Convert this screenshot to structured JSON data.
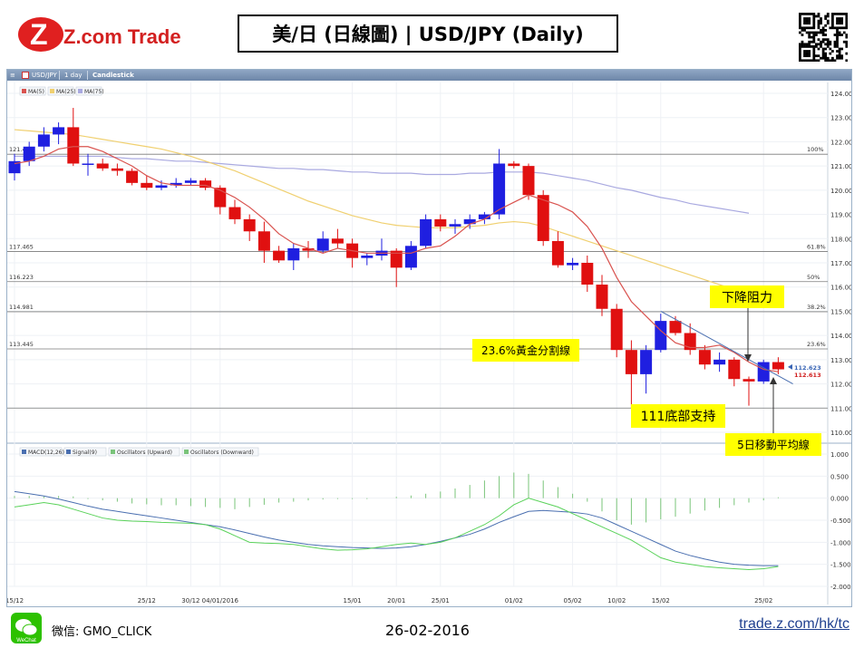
{
  "header": {
    "logo_text": "Z.com Trade",
    "title": "美/日 (日線圖) | USD/JPY  (Daily)"
  },
  "toolbar": {
    "symbol": "USD/JPY",
    "period": "1 day",
    "style": "Candlestick"
  },
  "legends": {
    "price": [
      "MA(5)",
      "MA(25)",
      "MA(75)"
    ],
    "oscillator": [
      "MACD(12,26)",
      "Signal(9)",
      "Oscillators (Upward)",
      "Oscillators (Downward)"
    ]
  },
  "annotations": {
    "resistance": "下降阻力",
    "fib": "23.6%黃金分割線",
    "support": "111底部支持",
    "ma": "5日移動平均線"
  },
  "footer": {
    "wechat_label": "WeChat",
    "wechat_id": "微信: GMO_CLICK",
    "date": "26-02-2016",
    "link": "trade.z.com/hk/tc"
  },
  "colors": {
    "up": "#1f1fe0",
    "down": "#e01010",
    "ma5": "#d9534f",
    "ma25": "#f0d070",
    "ma75": "#a9a9e0",
    "macd": "#4a6fb0",
    "signal": "#5ad25a",
    "hist": "#7ac47a",
    "callout": "#ffff00"
  },
  "chart_data": [
    {
      "type": "candlestick",
      "ylim": [
        110.0,
        124.0
      ],
      "yticks": [
        "124.000",
        "123.000",
        "122.000",
        "121.000",
        "120.000",
        "119.000",
        "118.000",
        "117.000",
        "116.000",
        "115.000",
        "114.000",
        "113.000",
        "112.000",
        "111.000",
        "110.000"
      ],
      "x_tick_labels": [
        "15/12",
        "25/12",
        "30/12",
        "04/01/2016",
        "15/01",
        "20/01",
        "25/01",
        "01/02",
        "05/02",
        "10/02",
        "15/02",
        "25/02"
      ],
      "x_tick_index": [
        0,
        9,
        12,
        14,
        23,
        26,
        29,
        34,
        38,
        41,
        44,
        51
      ],
      "fib_levels": [
        {
          "label": "100%",
          "value": 121.485
        },
        {
          "label": "61.8%",
          "value": 117.465
        },
        {
          "label": "50%",
          "value": 116.223
        },
        {
          "label": "38.2%",
          "value": 114.981
        },
        {
          "label": "23.6%",
          "value": 113.445
        }
      ],
      "support": 111.0,
      "last_prices": {
        "ask": 112.623,
        "bid": 112.613
      },
      "candles": [
        {
          "o": 120.7,
          "h": 121.5,
          "l": 120.4,
          "c": 121.2
        },
        {
          "o": 121.2,
          "h": 122.0,
          "l": 121.0,
          "c": 121.8
        },
        {
          "o": 121.8,
          "h": 122.6,
          "l": 121.6,
          "c": 122.3
        },
        {
          "o": 122.3,
          "h": 122.8,
          "l": 121.9,
          "c": 122.6
        },
        {
          "o": 122.6,
          "h": 123.4,
          "l": 121.0,
          "c": 121.1
        },
        {
          "o": 121.1,
          "h": 121.5,
          "l": 120.6,
          "c": 121.1
        },
        {
          "o": 121.1,
          "h": 121.3,
          "l": 120.8,
          "c": 120.9
        },
        {
          "o": 120.9,
          "h": 121.1,
          "l": 120.6,
          "c": 120.8
        },
        {
          "o": 120.8,
          "h": 120.9,
          "l": 120.2,
          "c": 120.3
        },
        {
          "o": 120.3,
          "h": 120.6,
          "l": 120.0,
          "c": 120.1
        },
        {
          "o": 120.1,
          "h": 120.4,
          "l": 120.0,
          "c": 120.2
        },
        {
          "o": 120.2,
          "h": 120.5,
          "l": 120.1,
          "c": 120.3
        },
        {
          "o": 120.3,
          "h": 120.5,
          "l": 120.2,
          "c": 120.4
        },
        {
          "o": 120.4,
          "h": 120.5,
          "l": 120.0,
          "c": 120.1
        },
        {
          "o": 120.1,
          "h": 120.2,
          "l": 119.0,
          "c": 119.3
        },
        {
          "o": 119.3,
          "h": 119.6,
          "l": 118.6,
          "c": 118.8
        },
        {
          "o": 118.8,
          "h": 119.0,
          "l": 117.9,
          "c": 118.3
        },
        {
          "o": 118.3,
          "h": 118.7,
          "l": 117.0,
          "c": 117.5
        },
        {
          "o": 117.5,
          "h": 117.7,
          "l": 117.0,
          "c": 117.1
        },
        {
          "o": 117.1,
          "h": 117.8,
          "l": 116.7,
          "c": 117.6
        },
        {
          "o": 117.6,
          "h": 117.9,
          "l": 117.2,
          "c": 117.5
        },
        {
          "o": 117.5,
          "h": 118.3,
          "l": 117.4,
          "c": 118.0
        },
        {
          "o": 118.0,
          "h": 118.4,
          "l": 117.6,
          "c": 117.8
        },
        {
          "o": 117.8,
          "h": 118.0,
          "l": 116.8,
          "c": 117.2
        },
        {
          "o": 117.2,
          "h": 117.4,
          "l": 116.9,
          "c": 117.3
        },
        {
          "o": 117.3,
          "h": 118.0,
          "l": 117.1,
          "c": 117.5
        },
        {
          "o": 117.5,
          "h": 117.6,
          "l": 116.0,
          "c": 116.8
        },
        {
          "o": 116.8,
          "h": 117.9,
          "l": 116.7,
          "c": 117.7
        },
        {
          "o": 117.7,
          "h": 119.0,
          "l": 117.6,
          "c": 118.8
        },
        {
          "o": 118.8,
          "h": 119.0,
          "l": 118.3,
          "c": 118.5
        },
        {
          "o": 118.5,
          "h": 118.8,
          "l": 118.2,
          "c": 118.6
        },
        {
          "o": 118.6,
          "h": 119.0,
          "l": 118.4,
          "c": 118.8
        },
        {
          "o": 118.8,
          "h": 119.1,
          "l": 118.6,
          "c": 119.0
        },
        {
          "o": 119.0,
          "h": 121.7,
          "l": 118.8,
          "c": 121.1
        },
        {
          "o": 121.1,
          "h": 121.2,
          "l": 120.9,
          "c": 121.0
        },
        {
          "o": 121.0,
          "h": 121.1,
          "l": 119.6,
          "c": 119.8
        },
        {
          "o": 119.8,
          "h": 120.0,
          "l": 117.7,
          "c": 117.9
        },
        {
          "o": 117.9,
          "h": 118.3,
          "l": 116.8,
          "c": 116.9
        },
        {
          "o": 116.9,
          "h": 117.2,
          "l": 116.7,
          "c": 117.0
        },
        {
          "o": 117.0,
          "h": 117.3,
          "l": 115.8,
          "c": 116.1
        },
        {
          "o": 116.1,
          "h": 116.5,
          "l": 114.8,
          "c": 115.1
        },
        {
          "o": 115.1,
          "h": 115.3,
          "l": 113.1,
          "c": 113.4
        },
        {
          "o": 113.4,
          "h": 113.8,
          "l": 111.0,
          "c": 112.4
        },
        {
          "o": 112.4,
          "h": 113.6,
          "l": 111.6,
          "c": 113.4
        },
        {
          "o": 113.4,
          "h": 114.9,
          "l": 113.3,
          "c": 114.6
        },
        {
          "o": 114.6,
          "h": 114.8,
          "l": 114.0,
          "c": 114.1
        },
        {
          "o": 114.1,
          "h": 114.5,
          "l": 113.2,
          "c": 113.4
        },
        {
          "o": 113.4,
          "h": 113.6,
          "l": 112.6,
          "c": 112.8
        },
        {
          "o": 112.8,
          "h": 113.3,
          "l": 112.5,
          "c": 113.0
        },
        {
          "o": 113.0,
          "h": 113.1,
          "l": 111.9,
          "c": 112.2
        },
        {
          "o": 112.2,
          "h": 112.3,
          "l": 111.1,
          "c": 112.1
        },
        {
          "o": 112.1,
          "h": 113.0,
          "l": 112.0,
          "c": 112.9
        },
        {
          "o": 112.9,
          "h": 113.1,
          "l": 112.4,
          "c": 112.6
        }
      ],
      "ma5": [
        121.1,
        121.2,
        121.4,
        121.7,
        121.8,
        121.8,
        121.6,
        121.3,
        121.0,
        120.6,
        120.3,
        120.2,
        120.2,
        120.2,
        120.0,
        119.7,
        119.3,
        118.8,
        118.2,
        117.8,
        117.6,
        117.4,
        117.6,
        117.5,
        117.4,
        117.4,
        117.4,
        117.4,
        117.6,
        117.7,
        118.1,
        118.6,
        118.8,
        119.2,
        119.5,
        119.8,
        119.6,
        119.4,
        119.1,
        118.5,
        117.6,
        116.4,
        115.4,
        114.8,
        114.2,
        113.7,
        113.5,
        113.5,
        113.6,
        113.3,
        112.9,
        112.6,
        112.5
      ],
      "ma25": [
        122.5,
        122.45,
        122.4,
        122.35,
        122.3,
        122.2,
        122.1,
        122.0,
        121.9,
        121.8,
        121.7,
        121.55,
        121.4,
        121.2,
        121.0,
        120.8,
        120.55,
        120.3,
        120.05,
        119.8,
        119.55,
        119.35,
        119.15,
        118.95,
        118.8,
        118.65,
        118.55,
        118.5,
        118.45,
        118.45,
        118.45,
        118.5,
        118.55,
        118.65,
        118.7,
        118.65,
        118.5,
        118.3,
        118.1,
        117.9,
        117.7,
        117.5,
        117.3,
        117.1,
        116.9,
        116.7,
        116.5,
        116.3,
        116.1,
        115.9,
        115.7,
        null,
        null
      ],
      "ma75": [
        121.4,
        121.4,
        121.4,
        121.4,
        121.4,
        121.4,
        121.4,
        121.35,
        121.3,
        121.3,
        121.25,
        121.2,
        121.2,
        121.15,
        121.1,
        121.05,
        121.0,
        120.95,
        120.9,
        120.9,
        120.85,
        120.85,
        120.8,
        120.75,
        120.75,
        120.7,
        120.7,
        120.7,
        120.65,
        120.65,
        120.65,
        120.7,
        120.7,
        120.75,
        120.75,
        120.75,
        120.7,
        120.6,
        120.5,
        120.4,
        120.25,
        120.1,
        120.0,
        119.85,
        119.7,
        119.6,
        119.45,
        119.35,
        119.25,
        119.15,
        119.05,
        null,
        null
      ]
    },
    {
      "type": "line",
      "name": "MACD oscillator",
      "ylim": [
        -2.0,
        1.0
      ],
      "yticks": [
        "1.000",
        "0.500",
        "0.000",
        "-0.500",
        "-1.000",
        "-1.500",
        "-2.000"
      ],
      "macd": [
        0.15,
        0.1,
        0.05,
        -0.02,
        -0.1,
        -0.18,
        -0.25,
        -0.3,
        -0.35,
        -0.4,
        -0.45,
        -0.5,
        -0.55,
        -0.6,
        -0.65,
        -0.72,
        -0.8,
        -0.88,
        -0.95,
        -1.0,
        -1.05,
        -1.08,
        -1.1,
        -1.12,
        -1.13,
        -1.14,
        -1.13,
        -1.1,
        -1.05,
        -0.98,
        -0.9,
        -0.82,
        -0.7,
        -0.55,
        -0.42,
        -0.3,
        -0.28,
        -0.3,
        -0.32,
        -0.36,
        -0.45,
        -0.6,
        -0.75,
        -0.9,
        -1.05,
        -1.2,
        -1.3,
        -1.38,
        -1.45,
        -1.5,
        -1.52,
        -1.53,
        -1.53
      ],
      "signal": [
        -0.2,
        -0.15,
        -0.1,
        -0.15,
        -0.25,
        -0.35,
        -0.45,
        -0.5,
        -0.52,
        -0.53,
        -0.55,
        -0.56,
        -0.57,
        -0.6,
        -0.7,
        -0.85,
        -1.0,
        -1.02,
        -1.03,
        -1.05,
        -1.1,
        -1.15,
        -1.18,
        -1.17,
        -1.15,
        -1.1,
        -1.05,
        -1.02,
        -1.05,
        -1.0,
        -0.9,
        -0.75,
        -0.6,
        -0.4,
        -0.15,
        0.0,
        -0.1,
        -0.2,
        -0.35,
        -0.5,
        -0.65,
        -0.8,
        -0.95,
        -1.15,
        -1.35,
        -1.45,
        -1.5,
        -1.55,
        -1.58,
        -1.6,
        -1.62,
        -1.6,
        -1.55
      ],
      "histogram": [
        0.05,
        0.05,
        0.04,
        0.05,
        0.04,
        -0.02,
        -0.05,
        -0.08,
        -0.12,
        -0.14,
        -0.16,
        -0.16,
        -0.18,
        -0.2,
        -0.22,
        -0.25,
        -0.2,
        -0.15,
        -0.1,
        -0.08,
        -0.05,
        -0.03,
        -0.02,
        -0.02,
        -0.02,
        0.0,
        0.03,
        0.06,
        0.1,
        0.15,
        0.22,
        0.3,
        0.4,
        0.5,
        0.58,
        0.55,
        0.4,
        0.25,
        0.1,
        -0.08,
        -0.3,
        -0.5,
        -0.6,
        -0.55,
        -0.48,
        -0.42,
        -0.35,
        -0.28,
        -0.22,
        -0.16,
        -0.1,
        -0.05,
        0.02
      ]
    }
  ]
}
